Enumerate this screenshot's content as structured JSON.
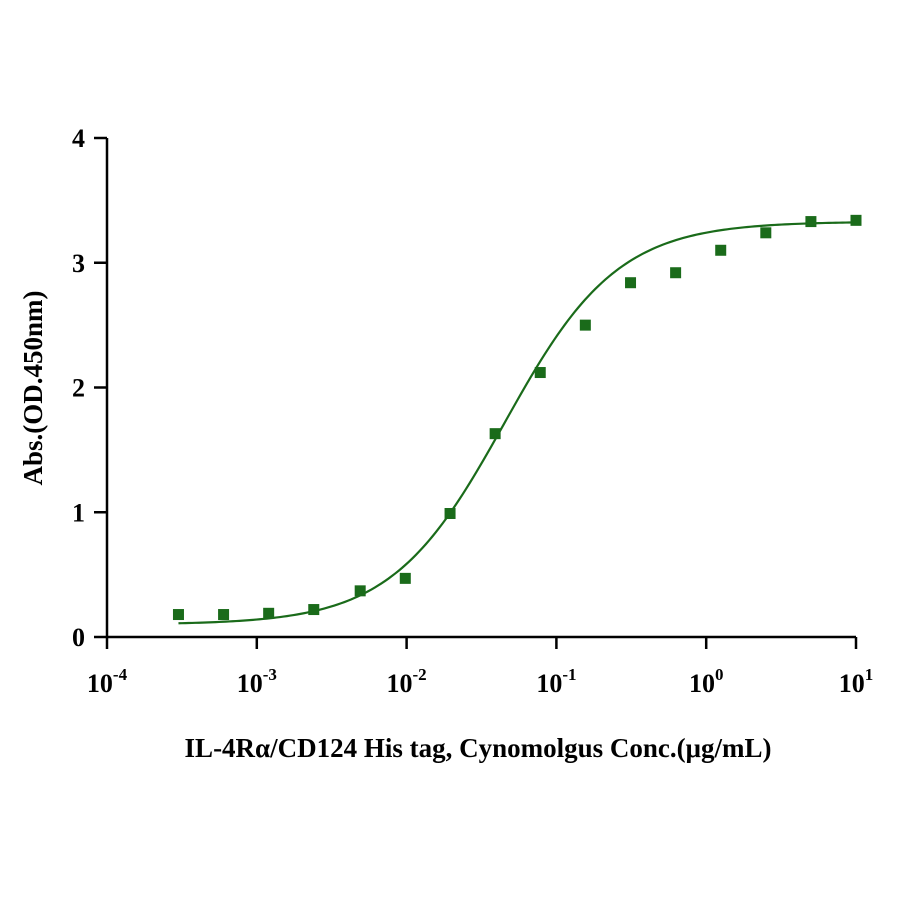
{
  "chart_data": {
    "type": "scatter",
    "xlabel": "IL-4Rα/CD124 His tag, Cynomolgus  Conc.(μg/mL)",
    "ylabel": "Abs.(OD.450nm)",
    "x_scale": "log",
    "xlim": [
      0.0001,
      10
    ],
    "ylim": [
      0,
      4
    ],
    "x_ticks": [
      {
        "value": 0.0001,
        "base": "10",
        "exp": "-4"
      },
      {
        "value": 0.001,
        "base": "10",
        "exp": "-3"
      },
      {
        "value": 0.01,
        "base": "10",
        "exp": "-2"
      },
      {
        "value": 0.1,
        "base": "10",
        "exp": "-1"
      },
      {
        "value": 1,
        "base": "10",
        "exp": "0"
      },
      {
        "value": 10,
        "base": "10",
        "exp": "1"
      }
    ],
    "y_ticks": [
      {
        "value": 0,
        "label": "0"
      },
      {
        "value": 1,
        "label": "1"
      },
      {
        "value": 2,
        "label": "2"
      },
      {
        "value": 3,
        "label": "3"
      },
      {
        "value": 4,
        "label": "4"
      }
    ],
    "grid": false,
    "color": "#1a6b1a",
    "marker": "square",
    "series": [
      {
        "x": [
          0.0003,
          0.0006,
          0.0012,
          0.0024,
          0.0049,
          0.0098,
          0.0195,
          0.039,
          0.078,
          0.156,
          0.3125,
          0.625,
          1.25,
          2.5,
          5,
          10
        ],
        "y": [
          0.18,
          0.18,
          0.19,
          0.22,
          0.37,
          0.47,
          0.99,
          1.63,
          2.12,
          2.5,
          2.84,
          2.92,
          3.1,
          3.24,
          3.33,
          3.34
        ]
      }
    ],
    "fit": {
      "type": "4PL",
      "bottom": 0.1,
      "top": 3.33,
      "ec50": 0.045,
      "hill": 1.15
    }
  }
}
